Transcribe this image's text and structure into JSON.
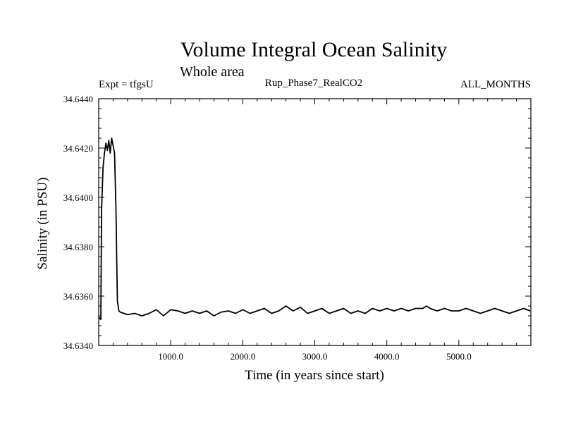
{
  "chart_data": {
    "type": "line",
    "title": "Volume Integral Ocean Salinity",
    "subtitle": "Whole area",
    "annotations": {
      "left": "Expt = tfgsU",
      "center": "Rup_Phase7_RealCO2",
      "right": "ALL_MONTHS"
    },
    "xlabel": "Time (in years since start)",
    "ylabel": "Salinity (in PSU)",
    "xlim": [
      0,
      6000
    ],
    "ylim": [
      34.634,
      34.644
    ],
    "x_ticks": [
      1000,
      2000,
      3000,
      4000,
      5000
    ],
    "x_tick_labels": [
      "1000.0",
      "2000.0",
      "3000.0",
      "4000.0",
      "5000.0"
    ],
    "y_ticks": [
      34.634,
      34.636,
      34.638,
      34.64,
      34.642,
      34.644
    ],
    "y_tick_labels": [
      "34.6340",
      "34.6360",
      "34.6380",
      "34.6400",
      "34.6420",
      "34.6440"
    ],
    "series": [
      {
        "name": "Salinity",
        "color": "#000000",
        "x": [
          0,
          30,
          40,
          60,
          80,
          100,
          120,
          140,
          160,
          180,
          200,
          220,
          240,
          250,
          260,
          280,
          300,
          400,
          500,
          600,
          700,
          800,
          900,
          1000,
          1100,
          1200,
          1300,
          1400,
          1500,
          1600,
          1700,
          1800,
          1900,
          2000,
          2100,
          2200,
          2300,
          2400,
          2500,
          2600,
          2650,
          2700,
          2800,
          2900,
          3000,
          3100,
          3200,
          3300,
          3400,
          3500,
          3600,
          3700,
          3800,
          3900,
          4000,
          4100,
          4200,
          4300,
          4400,
          4500,
          4550,
          4600,
          4700,
          4800,
          4900,
          5000,
          5100,
          5200,
          5300,
          5400,
          5500,
          5600,
          5700,
          5800,
          5900,
          5990
        ],
        "values": [
          34.63515,
          34.63505,
          34.6395,
          34.6412,
          34.6418,
          34.6422,
          34.6419,
          34.6423,
          34.6418,
          34.6424,
          34.6421,
          34.6418,
          34.6395,
          34.6375,
          34.6358,
          34.6354,
          34.63535,
          34.63525,
          34.6353,
          34.6352,
          34.6353,
          34.63545,
          34.6352,
          34.63545,
          34.6354,
          34.6353,
          34.6354,
          34.6353,
          34.6354,
          34.6352,
          34.63535,
          34.6354,
          34.6353,
          34.63545,
          34.6353,
          34.6354,
          34.6355,
          34.6353,
          34.6354,
          34.6356,
          34.6355,
          34.6354,
          34.63555,
          34.6353,
          34.6354,
          34.6355,
          34.6353,
          34.6354,
          34.6355,
          34.6353,
          34.6354,
          34.6353,
          34.6355,
          34.6354,
          34.6355,
          34.6354,
          34.6355,
          34.6354,
          34.6355,
          34.6355,
          34.6356,
          34.6355,
          34.6354,
          34.6355,
          34.6354,
          34.6354,
          34.6355,
          34.6354,
          34.6353,
          34.6354,
          34.6355,
          34.6354,
          34.6353,
          34.6354,
          34.6355,
          34.6354
        ]
      }
    ]
  }
}
